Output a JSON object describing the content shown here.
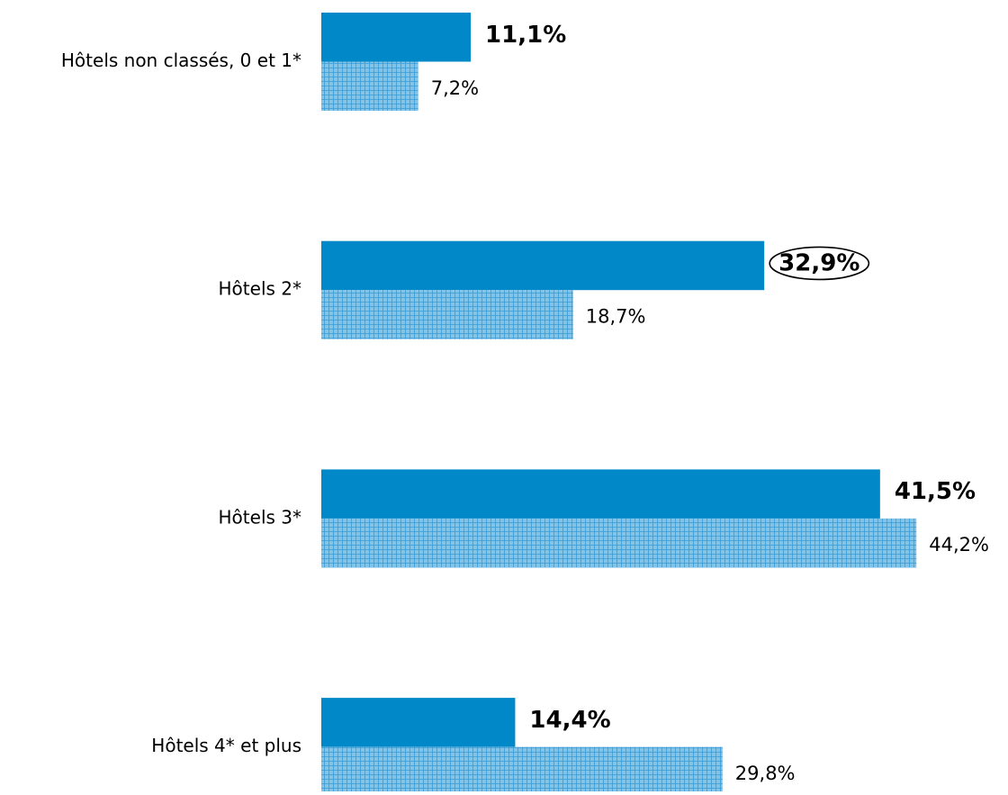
{
  "chart_data": {
    "type": "bar",
    "orientation": "horizontal",
    "categories": [
      "Hôtels non classés, 0 et 1*",
      "Hôtels 2*",
      "Hôtels 3*",
      "Hôtels 4* et plus"
    ],
    "series": [
      {
        "color": "#0088c8",
        "values": [
          11.1,
          32.9,
          41.5,
          14.4
        ],
        "value_labels": [
          "11,1%",
          "32,9%",
          "41,5%",
          "14,4%"
        ]
      },
      {
        "color": "#82c3e8",
        "values": [
          7.2,
          18.7,
          44.2,
          29.8
        ],
        "value_labels": [
          "7,2%",
          "18,7%",
          "44,2%",
          "29,8%"
        ]
      }
    ]
  }
}
